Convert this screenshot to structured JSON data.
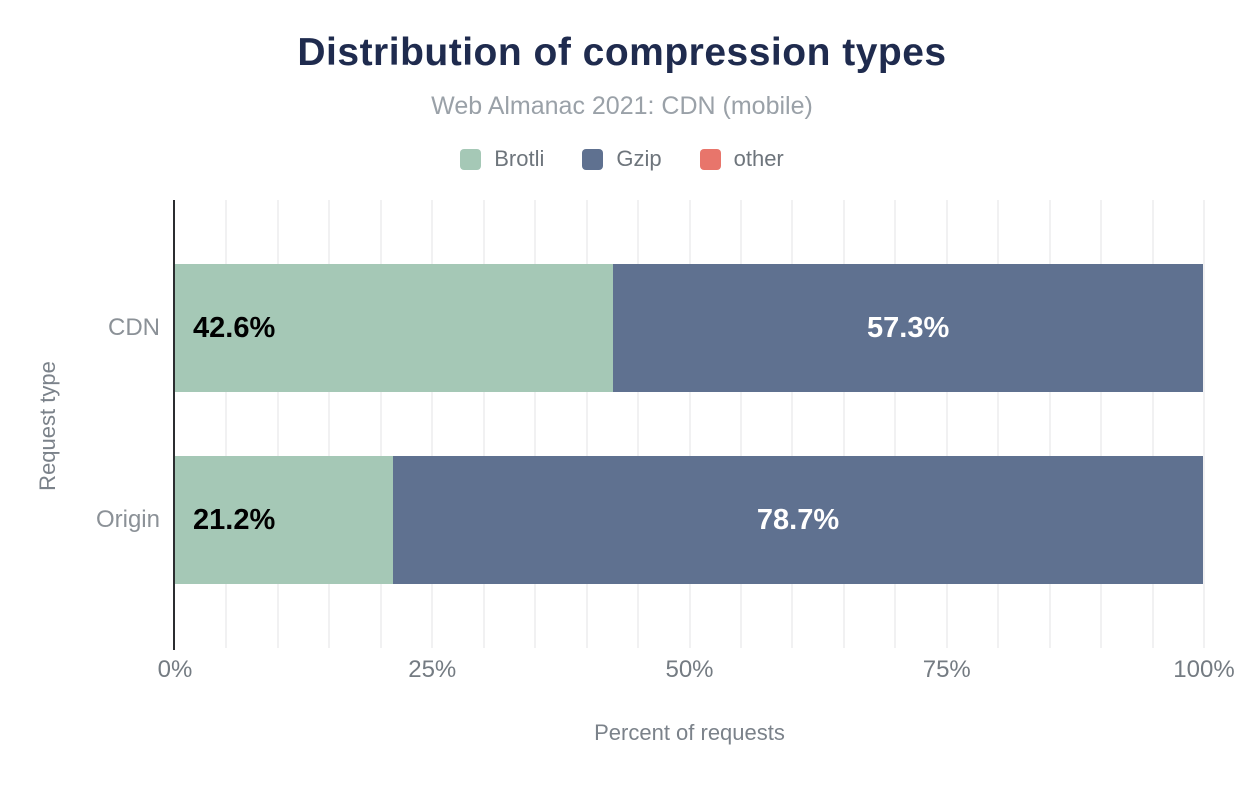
{
  "title": "Distribution of compression types",
  "subtitle": "Web Almanac 2021: CDN (mobile)",
  "legend": [
    {
      "label": "Brotli",
      "color": "#a5c8b6"
    },
    {
      "label": "Gzip",
      "color": "#5f7190"
    },
    {
      "label": "other",
      "color": "#e8756b"
    }
  ],
  "chart_data": {
    "type": "bar",
    "orientation": "horizontal",
    "stacked": true,
    "title": "Distribution of compression types",
    "subtitle": "Web Almanac 2021: CDN (mobile)",
    "categories": [
      "CDN",
      "Origin"
    ],
    "series": [
      {
        "name": "Brotli",
        "color": "#a5c8b6",
        "values": [
          42.6,
          21.2
        ],
        "data_labels": [
          "42.6%",
          "21.2%"
        ],
        "label_color": "#000000",
        "label_align": "left"
      },
      {
        "name": "Gzip",
        "color": "#5f7190",
        "values": [
          57.3,
          78.7
        ],
        "data_labels": [
          "57.3%",
          "78.7%"
        ],
        "label_color": "#ffffff",
        "label_align": "center"
      },
      {
        "name": "other",
        "color": "#e8756b",
        "values": [
          null,
          null
        ],
        "data_labels": [
          null,
          null
        ],
        "label_color": "#000000",
        "label_align": "center"
      }
    ],
    "xlabel": "Percent of requests",
    "ylabel": "Request type",
    "xlim": [
      0,
      100
    ],
    "x_ticks": [
      "0%",
      "25%",
      "50%",
      "75%",
      "100%"
    ],
    "grid": {
      "vertical": true,
      "interval_pct": 5
    },
    "legend_position": "top"
  },
  "colors": {
    "background": "#ffffff",
    "title": "#1f2b4e",
    "subtitle": "#9aa1a8",
    "axis_text": "#747b82",
    "category_text": "#8b9197",
    "gridline": "#f1f1f2",
    "axis_line": "#2b2d30"
  }
}
